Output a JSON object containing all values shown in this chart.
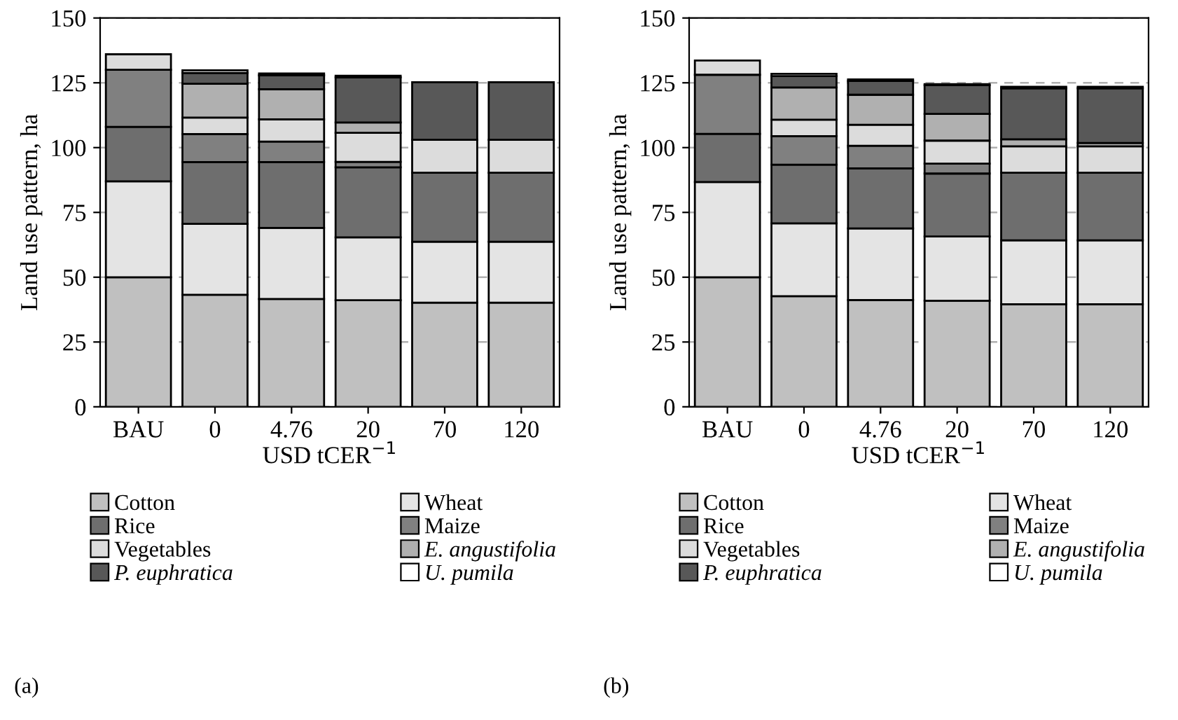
{
  "chart_data": [
    {
      "type": "bar",
      "stacked": true,
      "xlabel": "USD tCER$^{−1}$",
      "ylabel": "Land use pattern, ha",
      "annotations": [
        "(a)"
      ],
      "categories": [
        "BAU",
        "0",
        "4.76",
        "20",
        "70",
        "120"
      ],
      "ylim": [
        0,
        150
      ],
      "yticks": [
        0,
        25,
        50,
        75,
        100,
        125,
        150
      ],
      "grid": "y",
      "legend": "bottom",
      "series": [
        {
          "name": "Cotton",
          "color": "#c0c0c0",
          "values": [
            50,
            43.2,
            41.6,
            41.1,
            40.2,
            40.2
          ]
        },
        {
          "name": "Wheat",
          "color": "#e4e4e4",
          "values": [
            37,
            27.4,
            27.4,
            24.3,
            23.5,
            23.5
          ]
        },
        {
          "name": "Rice",
          "color": "#6e6e6e",
          "values": [
            21,
            23.8,
            25.4,
            27,
            26.6,
            26.6
          ]
        },
        {
          "name": "Maize",
          "color": "#808080",
          "values": [
            22,
            10.8,
            7.9,
            2.1,
            null,
            null
          ]
        },
        {
          "name": "Vegetables",
          "color": "#dcdcdc",
          "values": [
            6,
            6.4,
            8.6,
            11.2,
            12.7,
            12.7
          ]
        },
        {
          "name": "E. angustifolia",
          "color": "#b0b0b0",
          "values": [
            0,
            13,
            11.6,
            4,
            null,
            null
          ]
        },
        {
          "name": "P. euphratica",
          "color": "#585858",
          "values": [
            0,
            4.2,
            5.4,
            17.4,
            22.2,
            22.2
          ]
        },
        {
          "name": "U. pumila",
          "color": "#ffffff",
          "values": [
            0,
            1,
            0.7,
            0.6,
            0,
            0
          ]
        }
      ]
    },
    {
      "type": "bar",
      "stacked": true,
      "xlabel": "USD tCER$^{−1}$",
      "ylabel": "Land use pattern, ha",
      "annotations": [
        "(b)"
      ],
      "categories": [
        "BAU",
        "0",
        "4.76",
        "20",
        "70",
        "120"
      ],
      "ylim": [
        0,
        150
      ],
      "yticks": [
        0,
        25,
        50,
        75,
        100,
        125,
        150
      ],
      "grid": "y",
      "legend": "bottom",
      "series": [
        {
          "name": "Cotton",
          "color": "#c0c0c0",
          "values": [
            50,
            42.7,
            41.2,
            40.9,
            39.6,
            39.6
          ]
        },
        {
          "name": "Wheat",
          "color": "#e4e4e4",
          "values": [
            36.7,
            28.1,
            27.6,
            24.8,
            24.6,
            24.6
          ]
        },
        {
          "name": "Rice",
          "color": "#6e6e6e",
          "values": [
            18.6,
            22.6,
            23.2,
            24.3,
            26.1,
            26.1
          ]
        },
        {
          "name": "Maize",
          "color": "#808080",
          "values": [
            22.8,
            11,
            8.7,
            3.8,
            null,
            null
          ]
        },
        {
          "name": "Vegetables",
          "color": "#dcdcdc",
          "values": [
            5.5,
            6.4,
            8.1,
            8.9,
            10.2,
            10.2
          ]
        },
        {
          "name": "E. angustifolia",
          "color": "#b0b0b0",
          "values": [
            0,
            12.4,
            11.6,
            10.3,
            2.7,
            1.3
          ]
        },
        {
          "name": "P. euphratica",
          "color": "#585858",
          "values": [
            0,
            4.4,
            5.3,
            11.1,
            19.7,
            21.1
          ]
        },
        {
          "name": "U. pumila",
          "color": "#ffffff",
          "values": [
            0,
            0.9,
            0.6,
            0.4,
            0.6,
            0.6
          ]
        }
      ]
    }
  ]
}
